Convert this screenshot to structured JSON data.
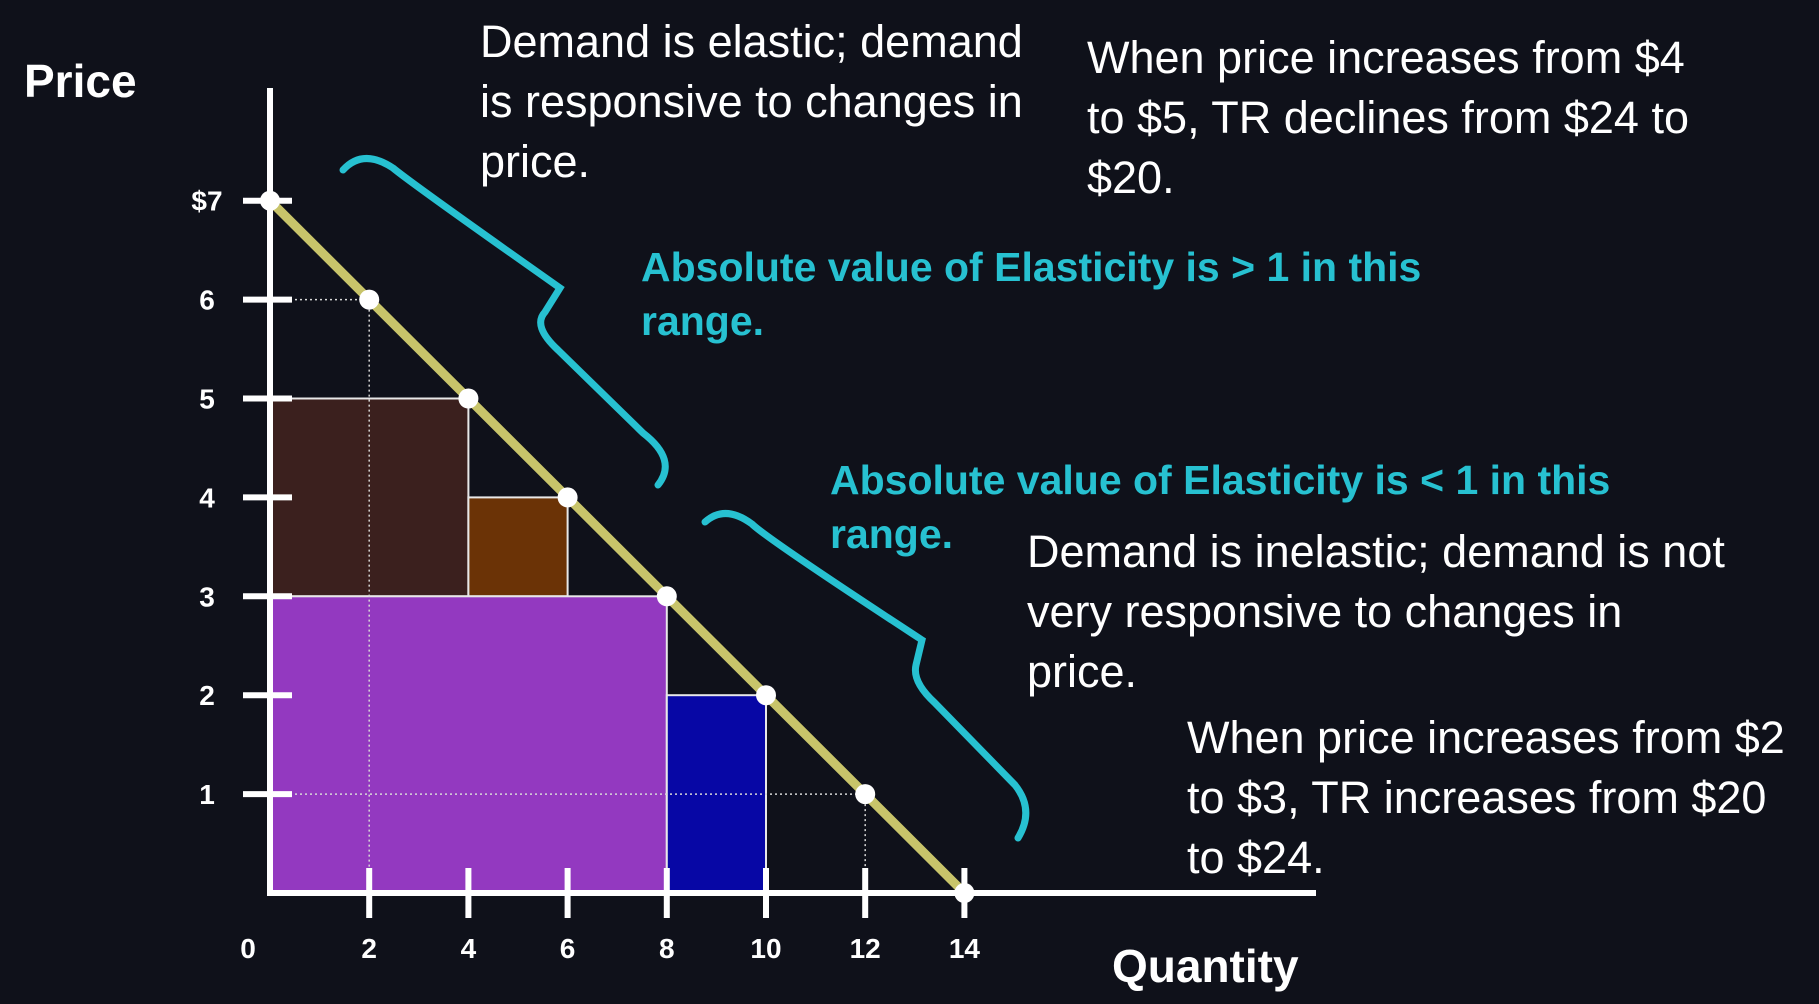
{
  "chart_data": {
    "type": "line",
    "xlabel": "Quantity",
    "ylabel": "Price",
    "xlim": [
      0,
      14
    ],
    "ylim": [
      0,
      7
    ],
    "x_ticks": [
      {
        "value": 0,
        "label": "0"
      },
      {
        "value": 2,
        "label": "2"
      },
      {
        "value": 4,
        "label": "4"
      },
      {
        "value": 6,
        "label": "6"
      },
      {
        "value": 8,
        "label": "8"
      },
      {
        "value": 10,
        "label": "10"
      },
      {
        "value": 12,
        "label": "12"
      },
      {
        "value": 14,
        "label": "14"
      }
    ],
    "y_ticks": [
      {
        "value": 1,
        "label": "1"
      },
      {
        "value": 2,
        "label": "2"
      },
      {
        "value": 3,
        "label": "3"
      },
      {
        "value": 4,
        "label": "4"
      },
      {
        "value": 5,
        "label": "5"
      },
      {
        "value": 6,
        "label": "6"
      },
      {
        "value": 7,
        "label": "$7"
      }
    ],
    "demand_points": [
      {
        "x": 0,
        "y": 7
      },
      {
        "x": 2,
        "y": 6
      },
      {
        "x": 4,
        "y": 5
      },
      {
        "x": 6,
        "y": 4
      },
      {
        "x": 8,
        "y": 3
      },
      {
        "x": 10,
        "y": 2
      },
      {
        "x": 12,
        "y": 1
      },
      {
        "x": 14,
        "y": 0
      }
    ],
    "revenue_areas": [
      {
        "x0": 0,
        "x1": 4,
        "y0": 3,
        "y1": 5,
        "color": "#3b201e"
      },
      {
        "x0": 4,
        "x1": 6,
        "y0": 3,
        "y1": 4,
        "color": "#6b3306"
      },
      {
        "x0": 0,
        "x1": 8,
        "y0": 0,
        "y1": 3,
        "color": "#9339c0"
      },
      {
        "x0": 8,
        "x1": 10,
        "y0": 0,
        "y1": 2,
        "color": "#0707a5"
      }
    ],
    "colors": {
      "background": "#0f111a",
      "demand_line": "#c8c46a",
      "brace": "#27c1d1",
      "axis": "#ffffff"
    }
  },
  "annotations": {
    "elastic_description": "Demand is elastic; demand is responsive to changes in price.",
    "elastic_tr_change": "When price increases from $4 to $5, TR declines from $24 to $20.",
    "elastic_range_label": "Absolute value of Elasticity is > 1 in this range.",
    "inelastic_range_label": "Absolute value of Elasticity is < 1 in this range.",
    "inelastic_description": "Demand is inelastic; demand is not very responsive to changes in price.",
    "inelastic_tr_change": "When price increases from $2 to $3, TR increases from $20 to $24."
  }
}
